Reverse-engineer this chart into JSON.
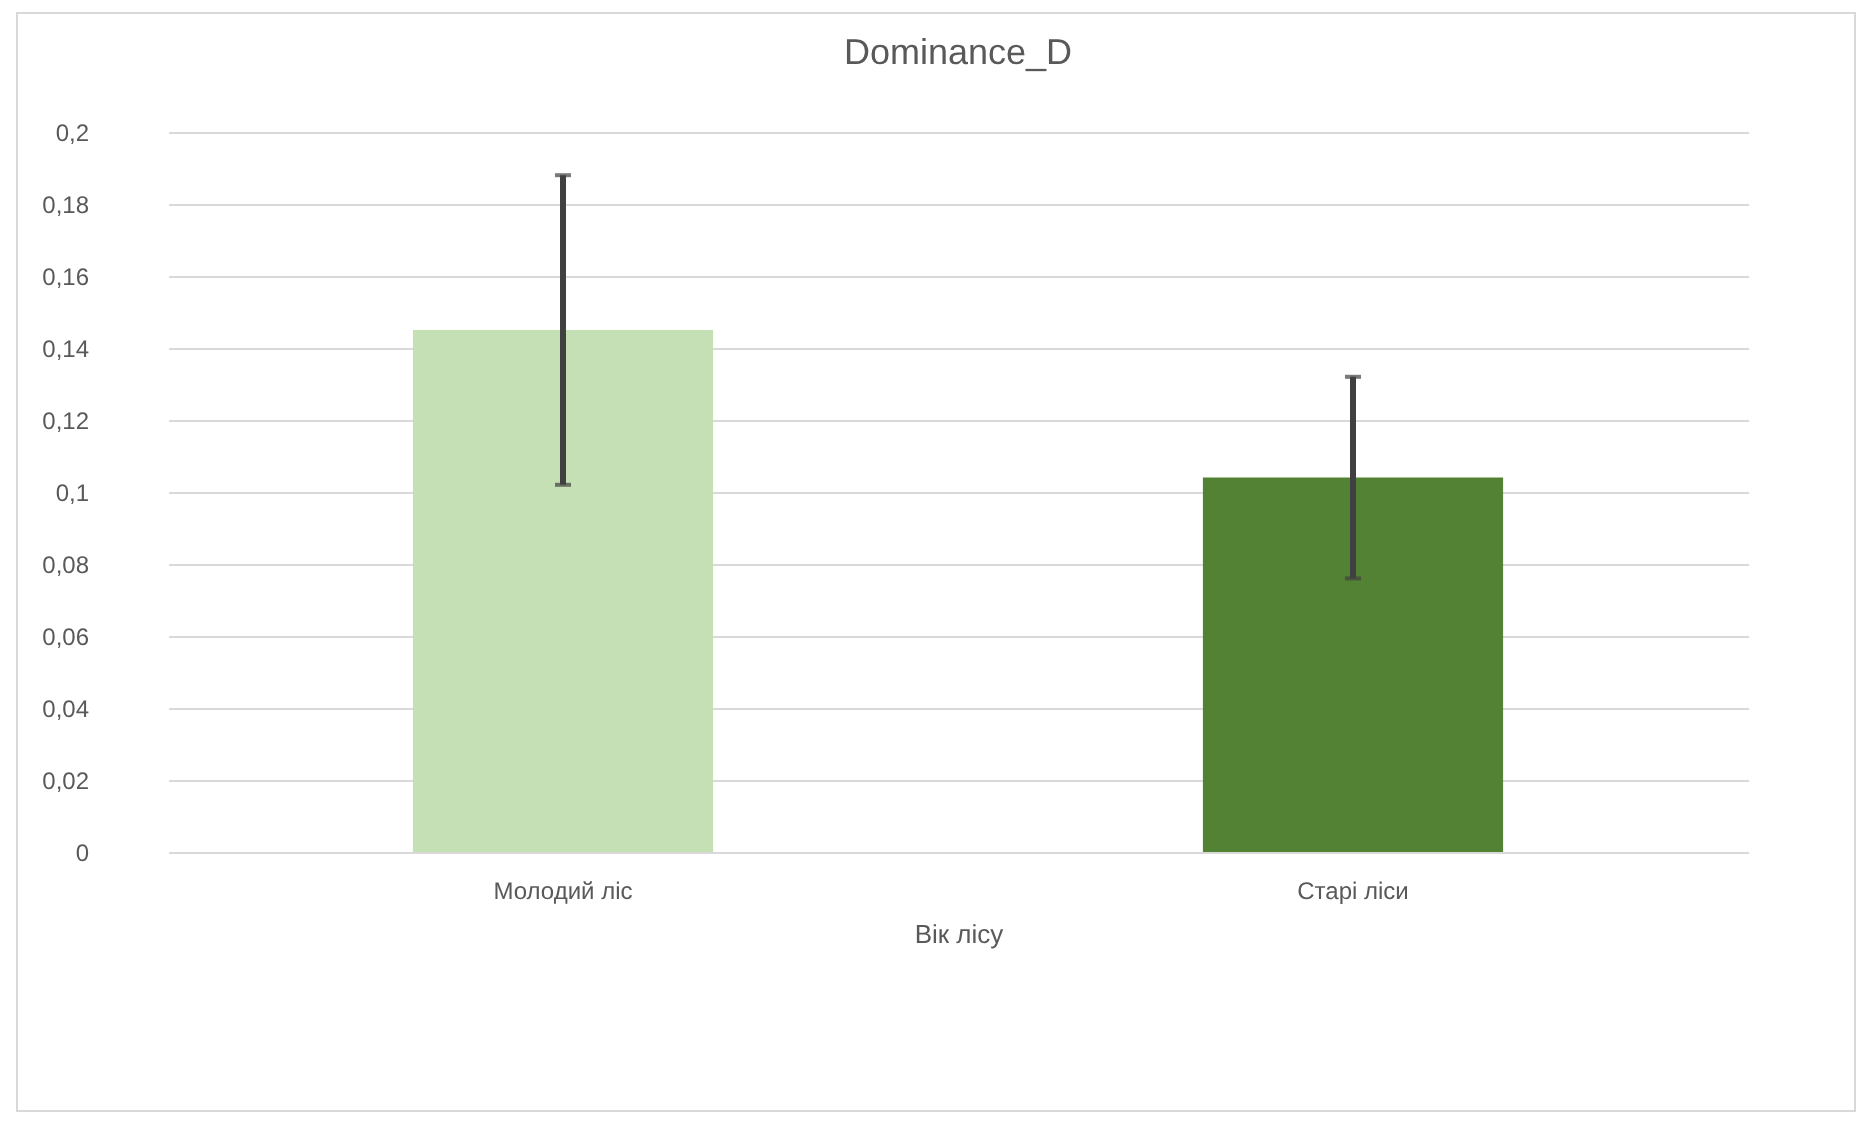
{
  "chart_data": {
    "type": "bar",
    "title": "Dominance_D",
    "xlabel": "Вік лісу",
    "categories": [
      "Молодий ліс",
      "Старі ліси"
    ],
    "values": [
      0.145,
      0.104
    ],
    "errors": [
      0.043,
      0.028
    ],
    "colors": [
      "#c5e0b4",
      "#548235"
    ],
    "ylim": [
      0,
      0.2
    ],
    "yticks": [
      {
        "value": 0,
        "label": "0"
      },
      {
        "value": 0.02,
        "label": "0,02"
      },
      {
        "value": 0.04,
        "label": "0,04"
      },
      {
        "value": 0.06,
        "label": "0,06"
      },
      {
        "value": 0.08,
        "label": "0,08"
      },
      {
        "value": 0.1,
        "label": "0,1"
      },
      {
        "value": 0.12,
        "label": "0,12"
      },
      {
        "value": 0.14,
        "label": "0,14"
      },
      {
        "value": 0.16,
        "label": "0,16"
      },
      {
        "value": 0.18,
        "label": "0,18"
      },
      {
        "value": 0.2,
        "label": "0,2"
      }
    ],
    "grid": "y"
  }
}
